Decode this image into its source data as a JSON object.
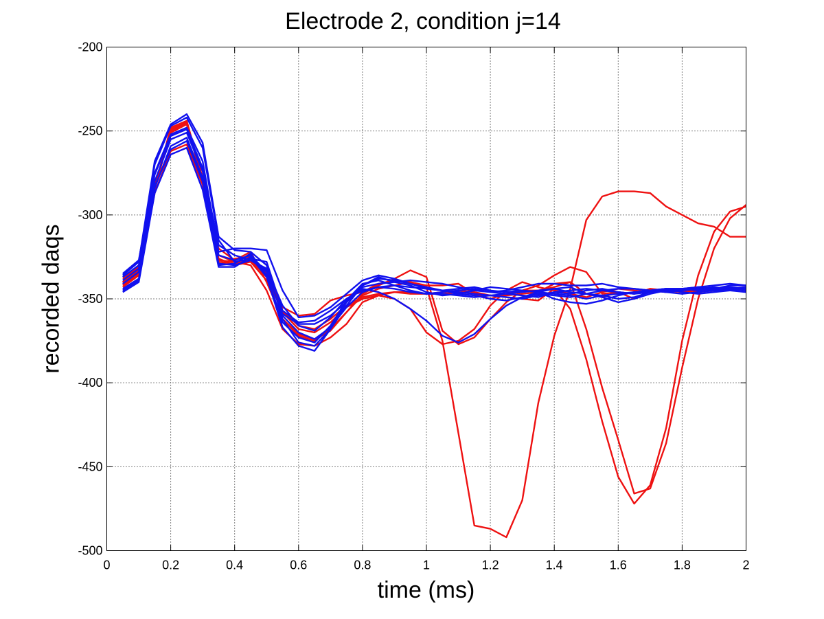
{
  "chart_data": {
    "type": "line",
    "title": "Electrode 2, condition j=14",
    "xlabel": "time (ms)",
    "ylabel": "recorded daqs",
    "xlim": [
      0,
      2
    ],
    "ylim": [
      -500,
      -200
    ],
    "xticks": [
      0,
      0.2,
      0.4,
      0.6,
      0.8,
      1,
      1.2,
      1.4,
      1.6,
      1.8,
      2
    ],
    "xtick_labels": [
      "0",
      "0.2",
      "0.4",
      "0.6",
      "0.8",
      "1",
      "1.2",
      "1.4",
      "1.6",
      "1.8",
      "2"
    ],
    "yticks": [
      -500,
      -450,
      -400,
      -350,
      -300,
      -250,
      -200
    ],
    "ytick_labels": [
      "-500",
      "-450",
      "-400",
      "-350",
      "-300",
      "-250",
      "-200"
    ],
    "grid": true,
    "colors": {
      "red": "#ee1111",
      "blue": "#1111ee"
    },
    "x": [
      0.05,
      0.1,
      0.15,
      0.2,
      0.25,
      0.3,
      0.35,
      0.4,
      0.45,
      0.5,
      0.55,
      0.6,
      0.65,
      0.7,
      0.75,
      0.8,
      0.85,
      0.9,
      0.95,
      1.0,
      1.05,
      1.1,
      1.15,
      1.2,
      1.25,
      1.3,
      1.35,
      1.4,
      1.45,
      1.5,
      1.55,
      1.6,
      1.65,
      1.7,
      1.75,
      1.8,
      1.85,
      1.9,
      1.95,
      2.0
    ],
    "series": [
      {
        "color": "red",
        "values": [
          -340,
          -333,
          -285,
          -248,
          -244,
          -278,
          -330,
          -326,
          -325,
          -335,
          -355,
          -360,
          -359,
          -351,
          -348,
          -346,
          -341,
          -339,
          -340,
          -342,
          -342,
          -341,
          -347,
          -350,
          -347,
          -345,
          -345,
          -343,
          -340,
          -347,
          -349,
          -346,
          -347,
          -344,
          -345,
          -346,
          -345,
          -344,
          -344,
          -343
        ]
      },
      {
        "color": "red",
        "values": [
          -342,
          -335,
          -283,
          -251,
          -246,
          -280,
          -320,
          -327,
          -322,
          -340,
          -362,
          -372,
          -375,
          -368,
          -358,
          -347,
          -342,
          -338,
          -333,
          -337,
          -369,
          -377,
          -373,
          -362,
          -352,
          -345,
          -342,
          -336,
          -331,
          -334,
          -347,
          -346,
          -350,
          -345,
          -346,
          -345,
          -343,
          -344,
          -343,
          -345
        ]
      },
      {
        "color": "red",
        "values": [
          -343,
          -336,
          -287,
          -262,
          -258,
          -282,
          -324,
          -328,
          -330,
          -345,
          -368,
          -377,
          -378,
          -373,
          -365,
          -352,
          -348,
          -350,
          -356,
          -370,
          -377,
          -375,
          -368,
          -354,
          -345,
          -340,
          -343,
          -345,
          -347,
          -349,
          -346,
          -344,
          -345,
          -346,
          -345,
          -344,
          -346,
          -345,
          -344,
          -345
        ]
      },
      {
        "color": "red",
        "values": [
          -338,
          -331,
          -283,
          -249,
          -245,
          -279,
          -326,
          -330,
          -328,
          -339,
          -362,
          -371,
          -374,
          -369,
          -358,
          -348,
          -344,
          -342,
          -340,
          -343,
          -375,
          -430,
          -485,
          -487,
          -492,
          -470,
          -412,
          -372,
          -344,
          -303,
          -289,
          -286,
          -286,
          -287,
          -295,
          -300,
          -305,
          -307,
          -313,
          -313
        ]
      },
      {
        "color": "red",
        "values": [
          -340,
          -332,
          -285,
          -250,
          -245,
          -280,
          -328,
          -329,
          -327,
          -337,
          -358,
          -368,
          -370,
          -364,
          -355,
          -350,
          -348,
          -346,
          -347,
          -347,
          -346,
          -345,
          -346,
          -348,
          -349,
          -350,
          -351,
          -344,
          -356,
          -386,
          -423,
          -456,
          -472,
          -461,
          -427,
          -375,
          -336,
          -310,
          -298,
          -295
        ]
      },
      {
        "color": "red",
        "values": [
          -341,
          -334,
          -284,
          -248,
          -244,
          -279,
          -327,
          -328,
          -326,
          -336,
          -357,
          -366,
          -368,
          -362,
          -354,
          -349,
          -347,
          -346,
          -346,
          -347,
          -347,
          -346,
          -347,
          -348,
          -348,
          -347,
          -346,
          -341,
          -340,
          -368,
          -403,
          -434,
          -466,
          -463,
          -436,
          -391,
          -350,
          -320,
          -302,
          -294
        ]
      },
      {
        "color": "blue",
        "values": [
          -336,
          -328,
          -268,
          -246,
          -240,
          -257,
          -313,
          -321,
          -322,
          -330,
          -362,
          -376,
          -378,
          -368,
          -354,
          -342,
          -338,
          -339,
          -341,
          -344,
          -345,
          -344,
          -343,
          -345,
          -346,
          -345,
          -346,
          -344,
          -343,
          -347,
          -345,
          -344,
          -344,
          -345,
          -346,
          -345,
          -344,
          -344,
          -345,
          -344
        ]
      },
      {
        "color": "blue",
        "values": [
          -337,
          -330,
          -270,
          -247,
          -242,
          -260,
          -315,
          -328,
          -326,
          -328,
          -357,
          -364,
          -363,
          -357,
          -350,
          -345,
          -343,
          -342,
          -343,
          -344,
          -345,
          -347,
          -348,
          -350,
          -351,
          -349,
          -347,
          -348,
          -349,
          -347,
          -348,
          -347,
          -346,
          -345,
          -344,
          -344,
          -343,
          -344,
          -342,
          -342
        ]
      },
      {
        "color": "blue",
        "values": [
          -346,
          -340,
          -287,
          -264,
          -260,
          -285,
          -331,
          -331,
          -325,
          -337,
          -367,
          -378,
          -381,
          -368,
          -352,
          -342,
          -337,
          -340,
          -342,
          -346,
          -348,
          -347,
          -345,
          -343,
          -344,
          -345,
          -346,
          -347,
          -348,
          -350,
          -348,
          -350,
          -349,
          -346,
          -345,
          -344,
          -343,
          -342,
          -341,
          -342
        ]
      },
      {
        "color": "blue",
        "values": [
          -344,
          -338,
          -284,
          -259,
          -254,
          -278,
          -329,
          -330,
          -327,
          -333,
          -360,
          -370,
          -374,
          -367,
          -355,
          -346,
          -343,
          -344,
          -346,
          -347,
          -347,
          -348,
          -349,
          -348,
          -347,
          -348,
          -349,
          -346,
          -345,
          -344,
          -345,
          -346,
          -347,
          -346,
          -345,
          -345,
          -344,
          -343,
          -344,
          -345
        ]
      },
      {
        "color": "blue",
        "values": [
          -335,
          -327,
          -275,
          -252,
          -248,
          -268,
          -322,
          -320,
          -320,
          -321,
          -345,
          -361,
          -360,
          -355,
          -347,
          -339,
          -336,
          -338,
          -341,
          -343,
          -345,
          -346,
          -347,
          -348,
          -349,
          -350,
          -348,
          -346,
          -347,
          -345,
          -344,
          -346,
          -347,
          -345,
          -344,
          -344,
          -345,
          -344,
          -343,
          -344
        ]
      },
      {
        "color": "blue",
        "values": [
          -345,
          -339,
          -283,
          -261,
          -256,
          -280,
          -330,
          -329,
          -323,
          -336,
          -364,
          -373,
          -376,
          -366,
          -351,
          -341,
          -339,
          -342,
          -345,
          -347,
          -346,
          -345,
          -344,
          -346,
          -347,
          -346,
          -345,
          -344,
          -346,
          -347,
          -349,
          -352,
          -350,
          -347,
          -345,
          -344,
          -344,
          -345,
          -344,
          -343
        ]
      },
      {
        "color": "blue",
        "values": [
          -339,
          -332,
          -276,
          -253,
          -249,
          -272,
          -318,
          -324,
          -327,
          -332,
          -354,
          -366,
          -369,
          -361,
          -350,
          -344,
          -346,
          -350,
          -356,
          -363,
          -372,
          -376,
          -371,
          -362,
          -354,
          -349,
          -346,
          -350,
          -352,
          -353,
          -351,
          -348,
          -346,
          -345,
          -344,
          -346,
          -347,
          -346,
          -345,
          -344
        ]
      },
      {
        "color": "blue",
        "values": [
          -341,
          -334,
          -280,
          -255,
          -251,
          -274,
          -324,
          -327,
          -324,
          -334,
          -359,
          -365,
          -365,
          -360,
          -352,
          -343,
          -341,
          -340,
          -339,
          -340,
          -341,
          -343,
          -345,
          -346,
          -345,
          -343,
          -341,
          -341,
          -342,
          -342,
          -341,
          -343,
          -344,
          -345,
          -346,
          -347,
          -346,
          -345,
          -345,
          -346
        ]
      }
    ]
  }
}
